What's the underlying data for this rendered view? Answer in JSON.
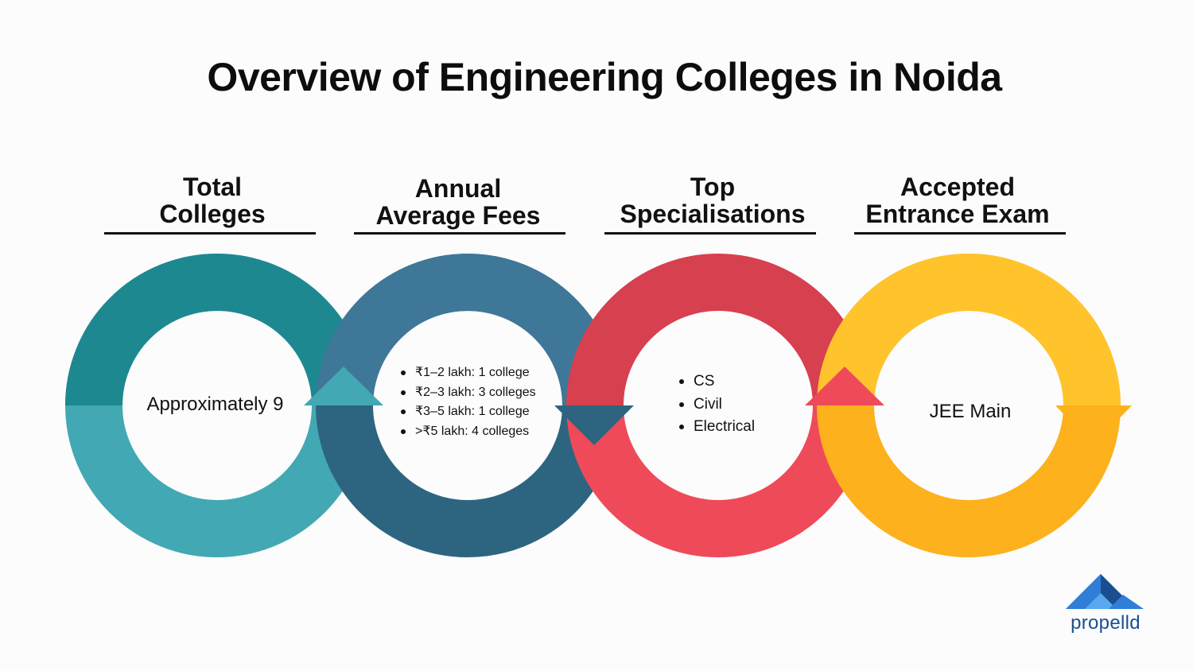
{
  "title": "Overview of Engineering Colleges in Noida",
  "steps": [
    {
      "heading": [
        "Total",
        "Colleges"
      ],
      "content": "Approximately 9",
      "colors": {
        "dark": "#1e8891",
        "light": "#42a8b4"
      }
    },
    {
      "heading": [
        "Annual",
        "Average Fees"
      ],
      "content_list": [
        "₹1–2 lakh: 1 college",
        "₹2–3 lakh: 3 colleges",
        "₹3–5 lakh: 1 college",
        ">₹5 lakh: 4 colleges"
      ],
      "colors": {
        "dark": "#2d6580",
        "light": "#3f7799"
      }
    },
    {
      "heading": [
        "Top",
        "Specialisations"
      ],
      "content_list": [
        "CS",
        "Civil",
        "Electrical"
      ],
      "colors": {
        "dark": "#d7404f",
        "light": "#ef4a5a"
      }
    },
    {
      "heading": [
        "Accepted",
        "Entrance Exam"
      ],
      "content": "JEE Main",
      "colors": {
        "dark": "#fcb11d",
        "light": "#ffc42c"
      }
    }
  ],
  "logo": {
    "text": "propelld",
    "colors": [
      "#1a4f8f",
      "#2f7ed8",
      "#58a9f0"
    ]
  }
}
